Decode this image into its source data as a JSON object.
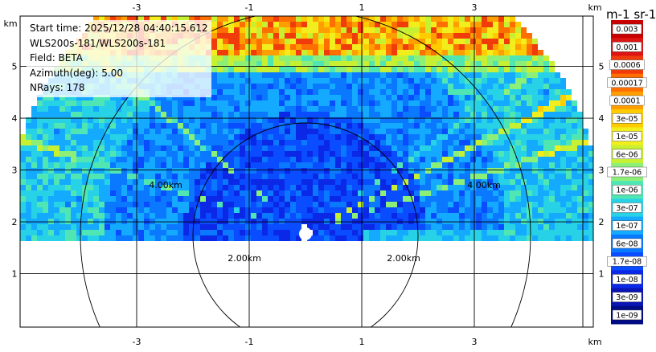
{
  "info": {
    "start_time": "Start time: 2025/12/28 04:40:15.612",
    "instrument": "WLS200s-181/WLS200s-181",
    "field": "Field: BETA",
    "azimuth": "Azimuth(deg): 5.00",
    "nrays": "NRays: 178"
  },
  "axes": {
    "x_unit": "km",
    "y_unit": "km",
    "x_ticks": [
      "-3",
      "-1",
      "1",
      "3"
    ],
    "y_ticks": [
      "1",
      "2",
      "3",
      "4",
      "5"
    ]
  },
  "range_rings": [
    "2.00km",
    "4.00km"
  ],
  "colorbar": {
    "title": "m-1 sr-1",
    "labels": [
      "0.003",
      "0.001",
      "0.0006",
      "0.00017",
      "0.0001",
      "3e-05",
      "1e-05",
      "6e-06",
      "1.7e-06",
      "1e-06",
      "3e-07",
      "1e-07",
      "6e-08",
      "1.7e-08",
      "1e-08",
      "3e-09",
      "1e-09"
    ],
    "colors": [
      "#c80000",
      "#dc1414",
      "#f03c0a",
      "#ff6e00",
      "#ff9e00",
      "#ffcc00",
      "#f2ee1e",
      "#c8f032",
      "#8cf078",
      "#50e6b4",
      "#28d2e6",
      "#14aaff",
      "#0a78ff",
      "#0a4cff",
      "#0a28e6",
      "#0a14b4",
      "#000a82"
    ]
  }
}
